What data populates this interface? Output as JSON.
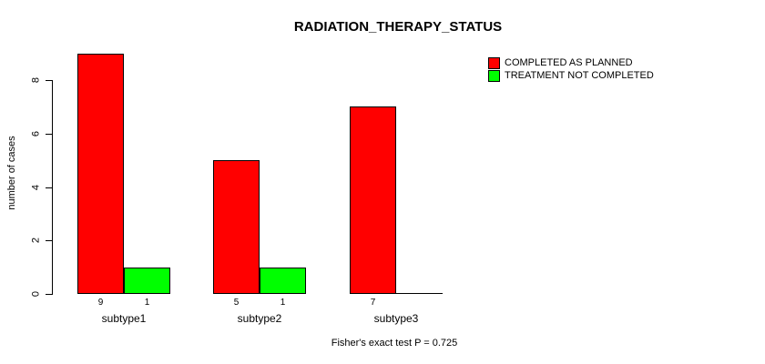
{
  "chart_data": {
    "type": "bar",
    "title": "RADIATION_THERAPY_STATUS",
    "categories": [
      "subtype1",
      "subtype2",
      "subtype3"
    ],
    "series": [
      {
        "name": "COMPLETED AS PLANNED",
        "color": "#FF0000",
        "values": [
          9,
          5,
          7
        ]
      },
      {
        "name": "TREATMENT NOT COMPLETED",
        "color": "#00FF00",
        "values": [
          1,
          1,
          0
        ]
      }
    ],
    "ylabel": "number of cases",
    "xlabel": "",
    "yticks": [
      0,
      2,
      4,
      6,
      8
    ],
    "ylim": [
      0,
      9
    ],
    "bar_value_labels_visible": true,
    "annotation": "Fisher's exact test P = 0.725",
    "legend_position": "top-right",
    "grid": false,
    "background": "#FFFFFF",
    "bar_border_color": "#000000"
  }
}
